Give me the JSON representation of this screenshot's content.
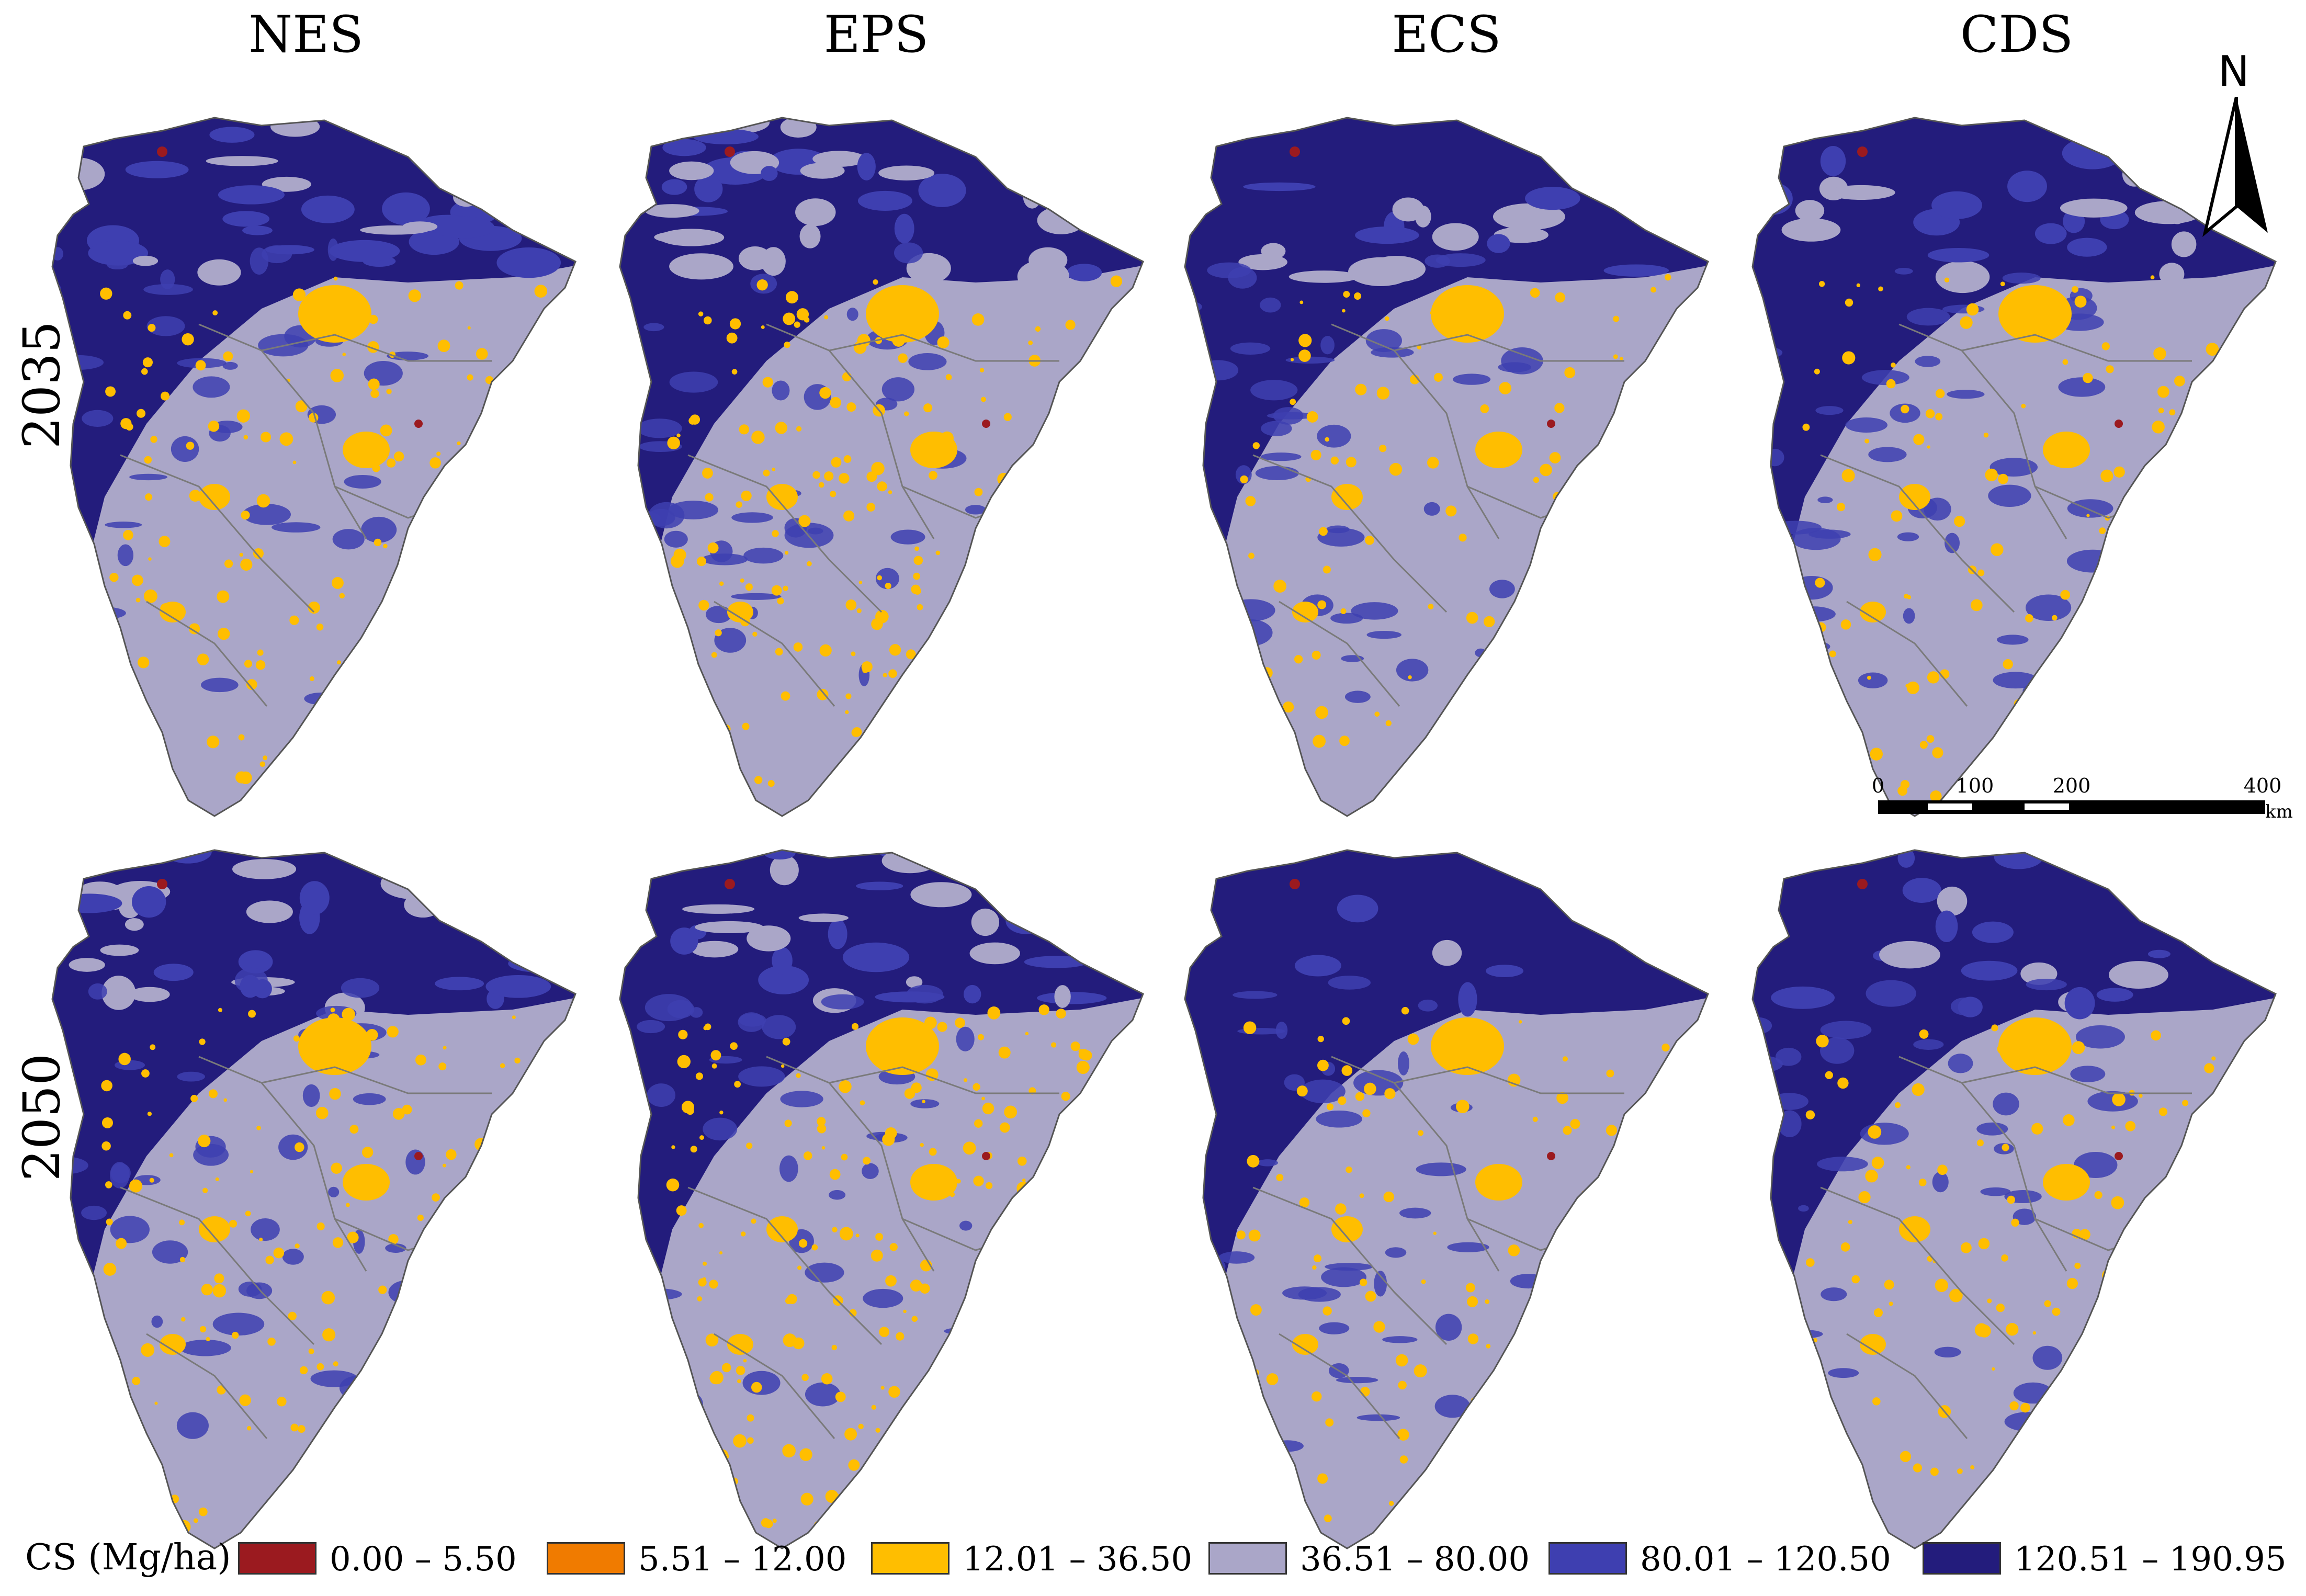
{
  "columns": [
    "NES",
    "EPS",
    "ECS",
    "CDS"
  ],
  "rows": [
    "2035",
    "2050"
  ],
  "north_label": "N",
  "scale": {
    "ticks": [
      "0",
      "100",
      "200",
      "400"
    ],
    "unit": "km"
  },
  "legend": {
    "title": "CS (Mg/ha)",
    "classes": [
      {
        "label": "0.00 – 5.50",
        "color": "#9b1a1f"
      },
      {
        "label": "5.51 – 12.00",
        "color": "#f07b00"
      },
      {
        "label": "12.01 – 36.50",
        "color": "#ffbe00"
      },
      {
        "label": "36.51 – 80.00",
        "color": "#aaa6c8"
      },
      {
        "label": "80.01 – 120.50",
        "color": "#3e3fb0"
      },
      {
        "label": "120.51 – 190.95",
        "color": "#231c7c"
      }
    ]
  }
}
